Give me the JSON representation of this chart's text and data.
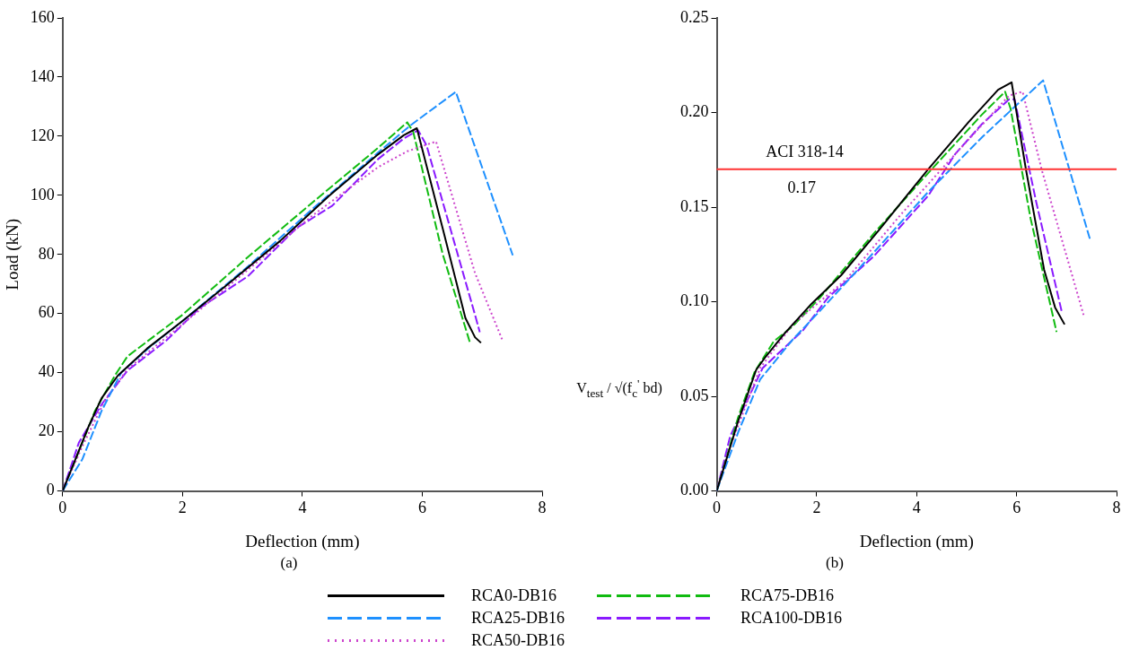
{
  "chart_data": [
    {
      "type": "line",
      "xlabel": "Deflection (mm)",
      "ylabel": "Load (kN)",
      "xlim": [
        0,
        8
      ],
      "xticks": [
        0,
        2,
        4,
        6,
        8
      ],
      "ylim": [
        0,
        160
      ],
      "yticks": [
        0,
        20,
        40,
        60,
        80,
        100,
        120,
        140,
        160
      ],
      "grid": false,
      "legend": "bottom",
      "marker": "none",
      "annotations": [
        "(a)"
      ],
      "series": [
        {
          "name": "RCA0-DB16",
          "color": "#000000",
          "line_style": "solid",
          "x": [
            0,
            0.43,
            0.65,
            0.92,
            1.41,
            2.0,
            2.76,
            3.63,
            4.44,
            5.26,
            5.69,
            5.91,
            6.34,
            6.72,
            6.88,
            6.98
          ],
          "values": [
            0,
            21.7,
            31.4,
            39,
            48.2,
            57.5,
            70,
            84.6,
            99.7,
            113.8,
            120.3,
            122.7,
            88.9,
            58.5,
            52,
            50.1
          ]
        },
        {
          "name": "RCA25-DB16",
          "color": "#1e90ff",
          "line_style": "dashed",
          "x": [
            0,
            0.33,
            0.65,
            0.98,
            1.46,
            2.0,
            3.09,
            4.17,
            5.26,
            5.8,
            6.56,
            7.51
          ],
          "values": [
            0,
            10.8,
            27.1,
            40.1,
            48.8,
            57.5,
            75.9,
            95.4,
            114.4,
            123.6,
            135,
            79.7
          ]
        },
        {
          "name": "RCA50-DB16",
          "color": "#cc44cc",
          "line_style": "dotted",
          "x": [
            0,
            0.33,
            0.7,
            1.08,
            2.0,
            3.09,
            4.17,
            5.26,
            5.75,
            6.23,
            6.88,
            7.34
          ],
          "values": [
            0,
            15.2,
            30.4,
            41.2,
            56.4,
            74.8,
            93.2,
            109.5,
            114.9,
            118.2,
            73.7,
            50.9
          ]
        },
        {
          "name": "RCA75-DB16",
          "color": "#11bb11",
          "line_style": "dashed",
          "x": [
            0,
            0.22,
            0.54,
            0.87,
            1.08,
            2.0,
            3.09,
            4.17,
            5.26,
            5.75,
            5.85,
            6.34,
            6.67,
            6.8
          ],
          "values": [
            0,
            10.8,
            27.1,
            39,
            45.5,
            59.6,
            79.1,
            97.6,
            116,
            124.7,
            121.4,
            80.2,
            58.5,
            49.9
          ]
        },
        {
          "name": "RCA100-DB16",
          "color": "#8a1aff",
          "line_style": "dashed",
          "x": [
            0,
            0.27,
            0.65,
            1.08,
            1.73,
            2.28,
            3.09,
            3.9,
            4.5,
            5.26,
            5.69,
            5.93,
            6.07,
            6.88,
            6.96
          ],
          "values": [
            0,
            16.3,
            29.3,
            40.7,
            50.9,
            61.8,
            72.6,
            88.9,
            96.5,
            112.2,
            119.2,
            122,
            117,
            59.6,
            53.7
          ]
        }
      ]
    },
    {
      "type": "line",
      "xlabel": "Deflection (mm)",
      "ylabel": "V$_{test}$ / √(f$_{c}$$^{'}$ bd)",
      "xlim": [
        0,
        8
      ],
      "xticks": [
        0,
        2,
        4,
        6,
        8
      ],
      "ylim": [
        0,
        0.25
      ],
      "yticks": [
        {
          "value": 0,
          "label": "0.00"
        },
        {
          "value": 0.05,
          "label": "0.05"
        },
        {
          "value": 0.1,
          "label": "0.10"
        },
        {
          "value": 0.15,
          "label": "0.15"
        },
        {
          "value": 0.2,
          "label": "0.20"
        },
        {
          "value": 0.25,
          "label": "0.25"
        }
      ],
      "grid": false,
      "marker": "none",
      "ref_lines": [
        {
          "axis": "y",
          "value": 0.17,
          "label": "ACI 318-14",
          "color": "#ff3333"
        }
      ],
      "annotations": [
        {
          "text": "0.17",
          "x": 1.7,
          "y": 0.17
        },
        "(b)"
      ],
      "series": [
        {
          "color": "#000000",
          "line_style": "solid",
          "x": [
            0,
            0.43,
            0.79,
            0.98,
            1.35,
            1.9,
            2.49,
            3.25,
            4.23,
            5.04,
            5.63,
            5.9,
            6.18,
            6.55,
            6.77,
            6.96
          ],
          "values": [
            0,
            0.037,
            0.064,
            0.071,
            0.083,
            0.099,
            0.114,
            0.138,
            0.17,
            0.195,
            0.212,
            0.216,
            0.171,
            0.117,
            0.097,
            0.088
          ]
        },
        {
          "color": "#1e90ff",
          "line_style": "dashed",
          "x": [
            0,
            0.43,
            0.87,
            1.52,
            2.06,
            3.14,
            4.23,
            5.31,
            6.53,
            7.48
          ],
          "values": [
            0,
            0.031,
            0.059,
            0.08,
            0.095,
            0.126,
            0.158,
            0.187,
            0.217,
            0.132
          ]
        },
        {
          "color": "#cc44cc",
          "line_style": "dotted",
          "x": [
            0,
            0.22,
            0.87,
            1.52,
            2.6,
            3.68,
            4.77,
            5.85,
            6.12,
            6.5,
            7.34
          ],
          "values": [
            0,
            0.02,
            0.065,
            0.088,
            0.112,
            0.146,
            0.178,
            0.209,
            0.211,
            0.17,
            0.093
          ]
        },
        {
          "color": "#11bb11",
          "line_style": "dashed",
          "x": [
            0,
            0.43,
            0.76,
            1.14,
            1.52,
            2.06,
            3.14,
            4.23,
            5.31,
            5.77,
            5.88,
            6.28,
            6.8
          ],
          "values": [
            0,
            0.039,
            0.063,
            0.079,
            0.087,
            0.102,
            0.136,
            0.168,
            0.199,
            0.211,
            0.202,
            0.144,
            0.084
          ]
        },
        {
          "color": "#8a1aff",
          "line_style": "dashed",
          "x": [
            0,
            0.27,
            0.92,
            1.73,
            2.22,
            3.14,
            4.23,
            4.77,
            5.31,
            5.85,
            5.96,
            6.39,
            6.91
          ],
          "values": [
            0,
            0.029,
            0.065,
            0.085,
            0.102,
            0.124,
            0.156,
            0.178,
            0.194,
            0.207,
            0.207,
            0.153,
            0.094
          ]
        }
      ]
    }
  ]
}
